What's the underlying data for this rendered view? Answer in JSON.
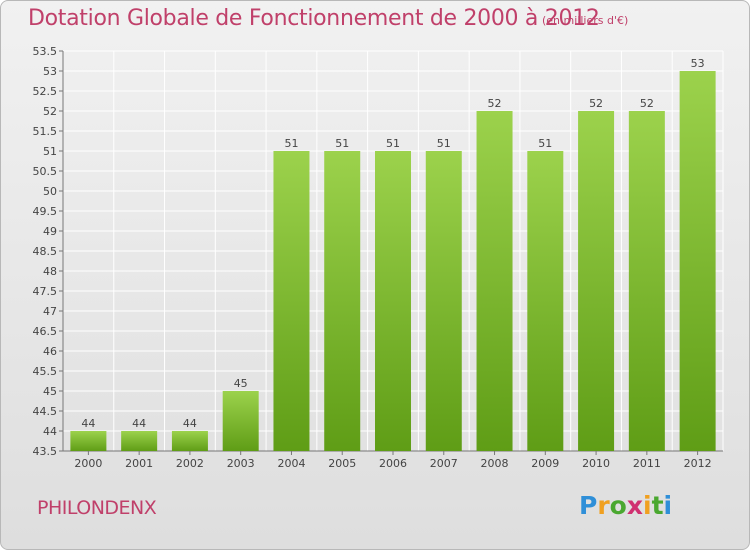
{
  "header": {
    "title": "Dotation Globale de Fonctionnement de 2000 à 2012",
    "unit": "(en milliers d'€)"
  },
  "footer": {
    "commune": "PHILONDENX",
    "logo": {
      "letters": [
        "P",
        "r",
        "o",
        "x",
        "i",
        "t",
        "i"
      ],
      "colors": [
        "#2f8fd8",
        "#f0a020",
        "#4aa830",
        "#d03070",
        "#f0a020",
        "#4aa830",
        "#2f8fd8"
      ]
    }
  },
  "chart_data": {
    "type": "bar",
    "categories": [
      "2000",
      "2001",
      "2002",
      "2003",
      "2004",
      "2005",
      "2006",
      "2007",
      "2008",
      "2009",
      "2010",
      "2011",
      "2012"
    ],
    "values": [
      44,
      44,
      44,
      45,
      51,
      51,
      51,
      51,
      52,
      51,
      52,
      52,
      53
    ],
    "data_labels": [
      "44",
      "44",
      "44",
      "45",
      "51",
      "51",
      "51",
      "51",
      "52",
      "51",
      "52",
      "52",
      "53"
    ],
    "ylim": [
      43.5,
      53.5
    ],
    "yticks": [
      43.5,
      44,
      44.5,
      45,
      45.5,
      46,
      46.5,
      47,
      47.5,
      48,
      48.5,
      49,
      49.5,
      50,
      50.5,
      51,
      51.5,
      52,
      52.5,
      53,
      53.5
    ],
    "ytick_labels": [
      "43.5",
      "44",
      "44.5",
      "45",
      "45.5",
      "46",
      "46.5",
      "47",
      "47.5",
      "48",
      "48.5",
      "49",
      "49.5",
      "50",
      "50.5",
      "51",
      "51.5",
      "52",
      "52.5",
      "53",
      "53.5"
    ],
    "grid": true,
    "colors": {
      "bar_top": "#9cd24c",
      "bar_bottom": "#5f9d16",
      "grid": "#ffffff",
      "axis": "#777777"
    }
  }
}
